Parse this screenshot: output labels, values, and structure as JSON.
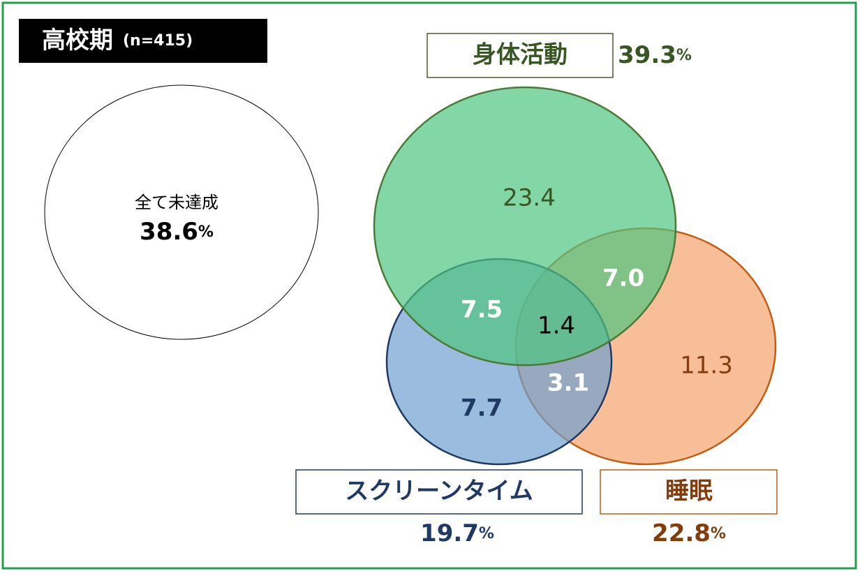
{
  "header": {
    "title": "高校期",
    "sample": "(n=415)"
  },
  "none_group": {
    "label": "全て未達成",
    "value": "38.6",
    "unit": "%"
  },
  "sets": [
    {
      "label": "身体活動",
      "value": "39.3",
      "unit": "%"
    },
    {
      "label": "スクリーンタイム",
      "value": "19.7",
      "unit": "%"
    },
    {
      "label": "睡眠",
      "value": "22.8",
      "unit": "%"
    }
  ],
  "regions": {
    "activity_only": "23.4",
    "activity_screen": "7.5",
    "all_three": "1.4",
    "activity_sleep": "7.0",
    "screen_only": "7.7",
    "screen_sleep": "3.1",
    "sleep_only": "11.3"
  }
}
